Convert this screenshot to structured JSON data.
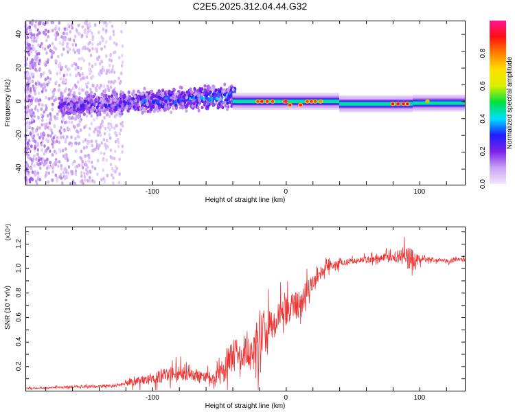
{
  "title": "C2E5.2025.312.04.44.G32",
  "chart_data": [
    {
      "type": "heatmap",
      "title": "C2E5.2025.312.04.44.G32",
      "xlabel": "Height of straight line (km)",
      "ylabel": "Frequency (Hz)",
      "xlim": [
        -195,
        134
      ],
      "ylim": [
        -49.5,
        48
      ],
      "x_ticks": [
        -100,
        0,
        100
      ],
      "x_tick_labels": [
        "-100",
        "0",
        "100"
      ],
      "y_ticks": [
        -40,
        -20,
        0,
        20,
        40
      ],
      "y_tick_labels": [
        "-40",
        "-20",
        "0",
        "20",
        "40"
      ],
      "colorbar": {
        "label": "Normalized spectral amplitude",
        "range": [
          0,
          1
        ],
        "ticks": [
          0,
          0.2,
          0.4,
          0.6,
          0.8
        ],
        "tick_labels": [
          "0.0",
          "0.2",
          "0.4",
          "0.6",
          "0.8"
        ],
        "colors": [
          "#f2e6ff",
          "#c9a3f2",
          "#7b20e8",
          "#1e1eff",
          "#00e0ff",
          "#00e040",
          "#d8f000",
          "#ffe000",
          "#ff8000",
          "#ff1010",
          "#ff1493"
        ]
      },
      "components": [
        {
          "name": "noise-scatter",
          "x_range": [
            -195,
            -122
          ],
          "freq_range": [
            -49,
            48
          ],
          "amplitude": [
            0.02,
            0.14
          ]
        },
        {
          "name": "broadband-cloud",
          "x_range": [
            -170,
            -38
          ],
          "center_freq": [
            -3,
            3
          ],
          "spread": 9,
          "amplitude": [
            0.08,
            0.45
          ]
        },
        {
          "name": "stable-band",
          "segments": [
            {
              "x": [
                -40,
                40
              ],
              "center_freq": 0
            },
            {
              "x": [
                40,
                95
              ],
              "center_freq": -1.5
            },
            {
              "x": [
                95,
                134
              ],
              "center_freq": -1
            }
          ],
          "amplitude": 0.5
        },
        {
          "name": "peaks",
          "points": [
            [
              -21,
              0,
              0.85
            ],
            [
              -18,
              0,
              0.9
            ],
            [
              -14,
              0,
              0.88
            ],
            [
              -10,
              0,
              0.85
            ],
            [
              -1,
              0,
              0.95
            ],
            [
              0,
              0,
              0.98
            ],
            [
              3,
              -2,
              0.9
            ],
            [
              11,
              -2,
              0.92
            ],
            [
              16,
              0,
              0.85
            ],
            [
              19,
              0,
              0.88
            ],
            [
              22,
              0,
              0.85
            ],
            [
              26,
              0,
              0.8
            ],
            [
              80,
              -1.5,
              0.9
            ],
            [
              84,
              -1.5,
              0.95
            ],
            [
              88,
              -1.5,
              0.95
            ],
            [
              91,
              -1.5,
              0.9
            ],
            [
              106,
              0,
              0.75
            ]
          ]
        }
      ]
    },
    {
      "type": "line",
      "xlabel": "Height of straight line (km)",
      "ylabel": "SNR (10 * v/v)",
      "y_multiplier": "(x10⁴)",
      "xlim": [
        -195,
        134
      ],
      "ylim": [
        0,
        1.34
      ],
      "x_ticks": [
        -100,
        0,
        100
      ],
      "x_tick_labels": [
        "-100",
        "0",
        "100"
      ],
      "y_ticks": [
        0.2,
        0.4,
        0.6,
        0.8,
        1.0,
        1.2
      ],
      "y_tick_labels": [
        "0.2",
        "0.4",
        "0.6",
        "0.8",
        "1.0",
        "1.2"
      ],
      "color": "#ee3333",
      "series": [
        {
          "name": "SNR",
          "x": [
            -195,
            -185,
            -175,
            -165,
            -155,
            -145,
            -135,
            -125,
            -120,
            -115,
            -110,
            -105,
            -100,
            -95,
            -90,
            -85,
            -80,
            -75,
            -70,
            -65,
            -60,
            -55,
            -50,
            -45,
            -40,
            -35,
            -30,
            -25,
            -20,
            -15,
            -10,
            -5,
            0,
            5,
            10,
            15,
            20,
            25,
            30,
            35,
            40,
            50,
            60,
            70,
            80,
            85,
            90,
            95,
            100,
            105,
            110,
            120,
            130,
            134
          ],
          "y": [
            0.02,
            0.02,
            0.025,
            0.03,
            0.035,
            0.035,
            0.04,
            0.045,
            0.06,
            0.08,
            0.08,
            0.09,
            0.1,
            0.12,
            0.13,
            0.14,
            0.14,
            0.14,
            0.13,
            0.12,
            0.12,
            0.1,
            0.12,
            0.22,
            0.3,
            0.3,
            0.33,
            0.32,
            0.42,
            0.5,
            0.55,
            0.6,
            0.65,
            0.7,
            0.7,
            0.8,
            0.88,
            0.95,
            1.0,
            1.02,
            1.04,
            1.06,
            1.07,
            1.08,
            1.09,
            1.1,
            1.1,
            1.05,
            1.08,
            1.08,
            1.07,
            1.06,
            1.07,
            1.07
          ],
          "noise": [
            0.01,
            0.01,
            0.01,
            0.015,
            0.02,
            0.02,
            0.02,
            0.02,
            0.03,
            0.07,
            0.06,
            0.07,
            0.08,
            0.1,
            0.1,
            0.1,
            0.1,
            0.1,
            0.09,
            0.09,
            0.08,
            0.08,
            0.12,
            0.25,
            0.25,
            0.25,
            0.28,
            0.28,
            0.3,
            0.3,
            0.25,
            0.2,
            0.2,
            0.2,
            0.22,
            0.15,
            0.1,
            0.08,
            0.07,
            0.05,
            0.05,
            0.04,
            0.04,
            0.05,
            0.06,
            0.1,
            0.15,
            0.2,
            0.06,
            0.04,
            0.03,
            0.03,
            0.03,
            0.03
          ]
        }
      ]
    }
  ]
}
